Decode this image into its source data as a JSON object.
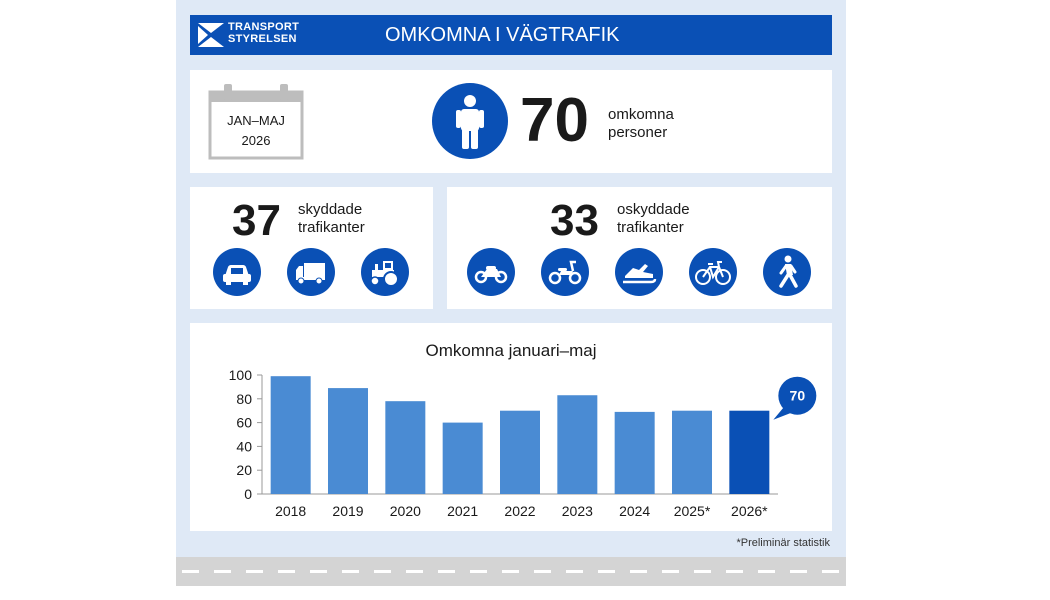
{
  "header": {
    "logo_line1": "TRANSPORT",
    "logo_line2": "STYRELSEN",
    "title": "OMKOMNA I VÄGTRAFIK"
  },
  "summary": {
    "period_line1": "JAN–MAJ",
    "period_line2": "2026",
    "total": "70",
    "total_label_line1": "omkomna",
    "total_label_line2": "personer",
    "person_icon": "person-icon"
  },
  "protected": {
    "count": "37",
    "label_line1": "skyddade",
    "label_line2": "trafikanter",
    "icons": [
      "car-icon",
      "truck-icon",
      "tractor-icon"
    ]
  },
  "unprotected": {
    "count": "33",
    "label_line1": "oskyddade",
    "label_line2": "trafikanter",
    "icons": [
      "motorcycle-icon",
      "moped-icon",
      "snowmobile-icon",
      "bicycle-icon",
      "pedestrian-icon"
    ]
  },
  "chart_data": {
    "type": "bar",
    "title": "Omkomna januari–maj",
    "categories": [
      "2018",
      "2019",
      "2020",
      "2021",
      "2022",
      "2023",
      "2024",
      "2025*",
      "2026*"
    ],
    "values": [
      99,
      89,
      78,
      60,
      70,
      83,
      69,
      70,
      70
    ],
    "ylim": [
      0,
      100
    ],
    "yticks": [
      0,
      20,
      40,
      60,
      80,
      100
    ],
    "callout": "70",
    "highlight_index": 8
  },
  "footnote": "*Preliminär statistik",
  "colors": {
    "brand_blue": "#0a50b5",
    "bar": "#4a8bd3",
    "bar_highlight": "#0a50b5",
    "background": "#dfe9f6"
  }
}
